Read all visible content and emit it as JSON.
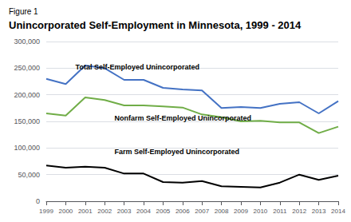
{
  "chart_data": {
    "type": "line",
    "subtitle": "Figure 1",
    "title": "Unincorporated Self-Employment in Minnesota, 1999 - 2014",
    "x": [
      1999,
      2000,
      2001,
      2002,
      2003,
      2004,
      2005,
      2006,
      2007,
      2008,
      2009,
      2010,
      2011,
      2012,
      2013,
      2014
    ],
    "series": [
      {
        "color": "#4472C4",
        "values": [
          230000,
          220000,
          255000,
          250000,
          228000,
          228000,
          213000,
          210000,
          208000,
          175000,
          177000,
          175000,
          183000,
          186000,
          165000,
          188000
        ]
      },
      {
        "color": "#70AD47",
        "values": [
          165000,
          161000,
          195000,
          190000,
          180000,
          180000,
          178000,
          176000,
          163000,
          158000,
          150000,
          151000,
          148000,
          148000,
          128000,
          140000
        ]
      },
      {
        "color": "#000000",
        "values": [
          67000,
          63000,
          65000,
          63000,
          52000,
          52000,
          36000,
          35000,
          38000,
          28000,
          27000,
          26000,
          35000,
          50000,
          40000,
          48000
        ]
      }
    ],
    "annotations": [
      {
        "text": "Total Self-Employed Unincorporated",
        "x": 2000.5,
        "y": 245000
      },
      {
        "text": "Nonfarm Self-Employed Unincorporated",
        "x": 2002.5,
        "y": 150000
      },
      {
        "text": "Farm Self-Employed Unincorporated",
        "x": 2002.5,
        "y": 87000
      }
    ],
    "xlim": [
      1999,
      2014
    ],
    "xticks": [
      1999,
      2000,
      2001,
      2002,
      2003,
      2004,
      2005,
      2006,
      2007,
      2008,
      2009,
      2010,
      2011,
      2012,
      2013,
      2014
    ],
    "ylim": [
      0,
      300000
    ],
    "yticks": [
      0,
      {
        "value": 50000,
        "label": "50,000"
      },
      {
        "value": 100000,
        "label": "100,000"
      },
      {
        "value": 150000,
        "label": "150,000"
      },
      {
        "value": 200000,
        "label": "200,000"
      },
      {
        "value": 250000,
        "label": "250,000"
      },
      {
        "value": 300000,
        "label": "300,000"
      }
    ],
    "grid": true
  }
}
